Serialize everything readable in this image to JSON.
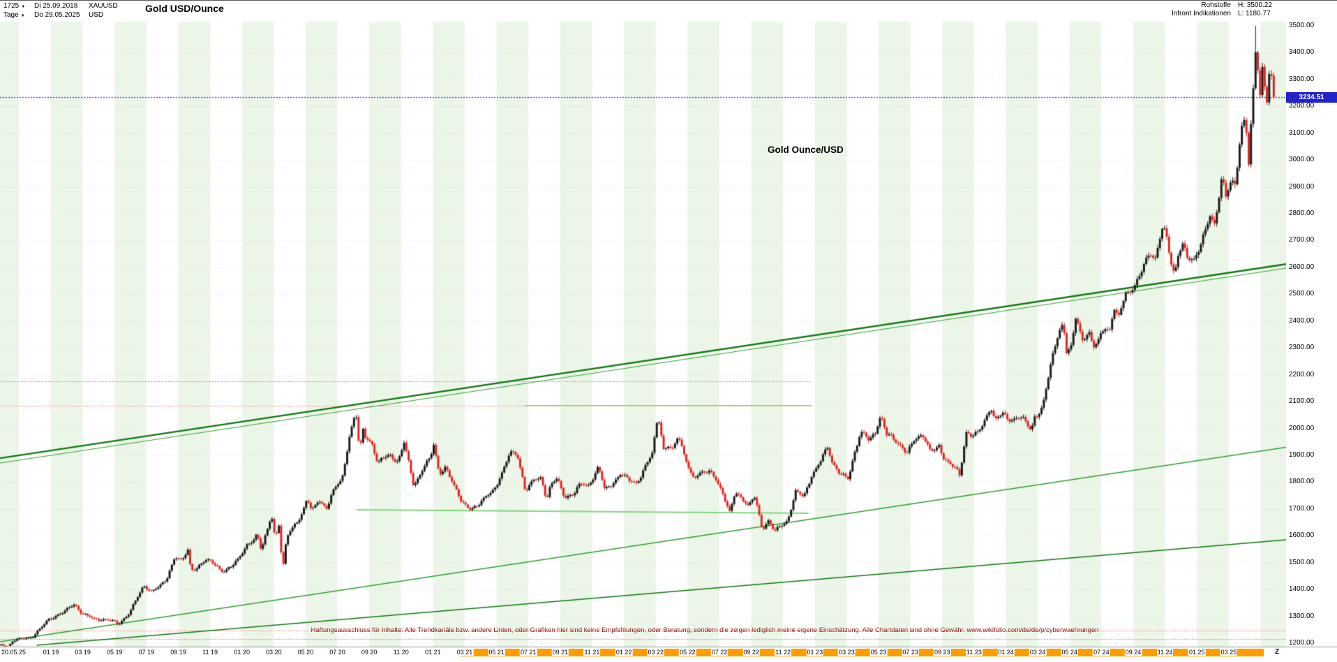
{
  "header": {
    "bars_label": "1725",
    "start_date": "Di 25.09.2018",
    "symbol": "XAUUSD",
    "period_label": "Tage",
    "end_date": "Do 29.05.2025",
    "currency": "USD",
    "title": "Gold USD/Ounce",
    "category": "Rohstoffe",
    "source": "Infront Indikationen",
    "high_label": "H: 3500.22",
    "low_label": "L: 1180.77"
  },
  "annotation": "Gold Ounce/USD",
  "disclaimer": "Haftungsausschluss für Inhalte: Alle Trendkanäle bzw. andere Linien, oder Grafiken hier sind keine Empfehlungen, oder Beratung, sondern die zeigen lediglich meine eigene Einschätzung. Alle Chartdaten sind ohne Gewähr.  www.wikifolio.com/de/de/p/cyberwaehrungen",
  "last_price_label": "3234.51",
  "x_axis": {
    "start_label": "20.05.25",
    "zoom_label": "Z"
  },
  "colors": {
    "candle_up": "#1b1b1b",
    "candle_down": "#e02622",
    "trend_dark_green": "#0e7a0e",
    "trend_mid_green": "#2f9e2f",
    "trend_light_green": "#7fd87f",
    "level_red": "#ff7474",
    "last_line_blue": "#2626d8",
    "tag_bg": "#2222cc",
    "tag_text": "#ffffff",
    "x_highlight": "#ff9d00",
    "stripe": "rgba(216,238,210,0.5)",
    "grid": "rgba(205,160,160,0.35)"
  },
  "chart_data": {
    "type": "candlestick",
    "title": "Gold USD/Ounce",
    "symbol": "XAUUSD",
    "timeframe": "Tage",
    "date_range": [
      "25.09.2018",
      "29.05.2025"
    ],
    "high": 3500.22,
    "low": 1180.77,
    "last": 3234.51,
    "xlabel": "",
    "ylabel": "",
    "ylim": [
      1200,
      3500
    ],
    "y_axis": {
      "min": 1200,
      "max": 3500,
      "step": 100
    },
    "months_total": 80.1,
    "candle_count": 560,
    "x_highlight": {
      "from_m": 28.9,
      "to_m": 79.4
    },
    "x_labels": [
      {
        "t": "01 19",
        "m": 3.2,
        "hl": false
      },
      {
        "t": "03 19",
        "m": 5.2,
        "hl": false
      },
      {
        "t": "05 19",
        "m": 7.2,
        "hl": false
      },
      {
        "t": "07 19",
        "m": 9.2,
        "hl": false
      },
      {
        "t": "09 19",
        "m": 11.2,
        "hl": false
      },
      {
        "t": "11 19",
        "m": 13.2,
        "hl": false
      },
      {
        "t": "01 20",
        "m": 15.2,
        "hl": false
      },
      {
        "t": "03 20",
        "m": 17.2,
        "hl": false
      },
      {
        "t": "05 20",
        "m": 19.2,
        "hl": false
      },
      {
        "t": "07 20",
        "m": 21.2,
        "hl": false
      },
      {
        "t": "09 20",
        "m": 23.2,
        "hl": false
      },
      {
        "t": "11 20",
        "m": 25.2,
        "hl": false
      },
      {
        "t": "01 21",
        "m": 27.2,
        "hl": false
      },
      {
        "t": "03 21",
        "m": 29.2,
        "hl": true
      },
      {
        "t": "05 21",
        "m": 31.2,
        "hl": true
      },
      {
        "t": "07 21",
        "m": 33.2,
        "hl": true
      },
      {
        "t": "09 21",
        "m": 35.2,
        "hl": true
      },
      {
        "t": "11 21",
        "m": 37.2,
        "hl": true
      },
      {
        "t": "01 22",
        "m": 39.2,
        "hl": true
      },
      {
        "t": "03 22",
        "m": 41.2,
        "hl": true
      },
      {
        "t": "05 22",
        "m": 43.2,
        "hl": true
      },
      {
        "t": "07 22",
        "m": 45.2,
        "hl": true
      },
      {
        "t": "09 22",
        "m": 47.2,
        "hl": true
      },
      {
        "t": "11 22",
        "m": 49.2,
        "hl": true
      },
      {
        "t": "01 23",
        "m": 51.2,
        "hl": true
      },
      {
        "t": "03 23",
        "m": 53.2,
        "hl": true
      },
      {
        "t": "05 23",
        "m": 55.2,
        "hl": true
      },
      {
        "t": "07 23",
        "m": 57.2,
        "hl": true
      },
      {
        "t": "09 23",
        "m": 59.2,
        "hl": true
      },
      {
        "t": "11 23",
        "m": 61.2,
        "hl": true
      },
      {
        "t": "01 24",
        "m": 63.2,
        "hl": true
      },
      {
        "t": "03 24",
        "m": 65.2,
        "hl": true
      },
      {
        "t": "05 24",
        "m": 67.2,
        "hl": true
      },
      {
        "t": "07 24",
        "m": 69.2,
        "hl": true
      },
      {
        "t": "09 24",
        "m": 71.2,
        "hl": true
      },
      {
        "t": "11 24",
        "m": 73.2,
        "hl": true
      },
      {
        "t": "01 25",
        "m": 75.2,
        "hl": true
      },
      {
        "t": "03 25",
        "m": 77.2,
        "hl": true
      }
    ],
    "horizontal_lines": [
      {
        "name": "last-price-line",
        "price": 3234.51,
        "color": "#2626d8",
        "style": "dotted",
        "width": 1.2,
        "from_m": 0,
        "to_m": 82
      },
      {
        "name": "resistance-upper",
        "price": 2175,
        "color": "#ff7474",
        "style": "dotted",
        "width": 1,
        "from_m": 0,
        "to_m": 51
      },
      {
        "name": "resistance-lower",
        "price": 2085,
        "color": "#ff7474",
        "style": "dotted",
        "width": 1,
        "from_m": 0,
        "to_m": 51
      },
      {
        "name": "support-upper",
        "price": 1247,
        "color": "#ff7474",
        "style": "dotted",
        "width": 1,
        "from_m": 0,
        "to_m": 82
      },
      {
        "name": "support-lower",
        "price": 1216,
        "color": "#ff7474",
        "style": "dotted",
        "width": 1,
        "from_m": 0,
        "to_m": 82
      }
    ],
    "trend_lines": [
      {
        "name": "upper-channel-main",
        "from": [
          0,
          1889
        ],
        "to": [
          81.5,
          2612
        ],
        "color": "#0e7a0e",
        "width": 2.4
      },
      {
        "name": "upper-channel-inner",
        "from": [
          0,
          1871
        ],
        "to": [
          81.5,
          2597
        ],
        "color": "#2f9e2f",
        "width": 1
      },
      {
        "name": "mid-trend",
        "from": [
          0,
          1205
        ],
        "to": [
          81.5,
          1930
        ],
        "color": "#2f9e2f",
        "width": 1.4
      },
      {
        "name": "lower-trend",
        "from": [
          2.3,
          1192
        ],
        "to": [
          81.5,
          1585
        ],
        "color": "#0e7a0e",
        "width": 1.5
      },
      {
        "name": "flat-support",
        "from": [
          22.4,
          1697
        ],
        "to": [
          50.8,
          1684
        ],
        "color": "#7fd87f",
        "width": 2
      },
      {
        "name": "flat-resistance",
        "from": [
          33,
          2085
        ],
        "to": [
          51,
          2085
        ],
        "color": "#7fd87f",
        "width": 1.5
      }
    ],
    "close_path": [
      [
        0,
        1192
      ],
      [
        0.5,
        1185
      ],
      [
        1,
        1215
      ],
      [
        2,
        1222
      ],
      [
        3,
        1282
      ],
      [
        4,
        1321
      ],
      [
        4.7,
        1344
      ],
      [
        5,
        1313
      ],
      [
        6,
        1292
      ],
      [
        7,
        1283
      ],
      [
        7.4,
        1268
      ],
      [
        8,
        1305
      ],
      [
        9,
        1409
      ],
      [
        9.5,
        1390
      ],
      [
        10,
        1414
      ],
      [
        10.5,
        1446
      ],
      [
        11,
        1520
      ],
      [
        11.4,
        1500
      ],
      [
        11.8,
        1549
      ],
      [
        12,
        1472
      ],
      [
        12.5,
        1490
      ],
      [
        13,
        1512
      ],
      [
        13.5,
        1490
      ],
      [
        14,
        1464
      ],
      [
        15,
        1517
      ],
      [
        15.5,
        1555
      ],
      [
        16,
        1589
      ],
      [
        16.15,
        1611
      ],
      [
        16.4,
        1556
      ],
      [
        16.9,
        1643
      ],
      [
        17.05,
        1680
      ],
      [
        17.3,
        1585
      ],
      [
        17.55,
        1642
      ],
      [
        17.75,
        1460
      ],
      [
        18,
        1590
      ],
      [
        18.2,
        1617
      ],
      [
        19,
        1686
      ],
      [
        19.3,
        1740
      ],
      [
        19.6,
        1684
      ],
      [
        20,
        1730
      ],
      [
        20.5,
        1706
      ],
      [
        21,
        1781
      ],
      [
        21.5,
        1808
      ],
      [
        22,
        1976
      ],
      [
        22.35,
        2067
      ],
      [
        22.6,
        1911
      ],
      [
        22.8,
        2010
      ],
      [
        23,
        1968
      ],
      [
        23.4,
        1940
      ],
      [
        23.75,
        1857
      ],
      [
        24,
        1886
      ],
      [
        24.5,
        1902
      ],
      [
        25,
        1879
      ],
      [
        25.4,
        1951
      ],
      [
        25.7,
        1867
      ],
      [
        26,
        1777
      ],
      [
        26.5,
        1840
      ],
      [
        27,
        1898
      ],
      [
        27.25,
        1943
      ],
      [
        27.6,
        1830
      ],
      [
        28,
        1847
      ],
      [
        28.5,
        1790
      ],
      [
        29,
        1734
      ],
      [
        29.5,
        1700
      ],
      [
        30,
        1708
      ],
      [
        30.5,
        1744
      ],
      [
        31,
        1769
      ],
      [
        31.5,
        1830
      ],
      [
        32,
        1907
      ],
      [
        32.5,
        1898
      ],
      [
        33,
        1770
      ],
      [
        33.5,
        1812
      ],
      [
        34,
        1814
      ],
      [
        34.35,
        1729
      ],
      [
        34.6,
        1790
      ],
      [
        35,
        1814
      ],
      [
        35.5,
        1744
      ],
      [
        36,
        1757
      ],
      [
        36.5,
        1792
      ],
      [
        37,
        1783
      ],
      [
        37.6,
        1862
      ],
      [
        38,
        1775
      ],
      [
        38.5,
        1790
      ],
      [
        39,
        1829
      ],
      [
        39.5,
        1812
      ],
      [
        40,
        1797
      ],
      [
        40.5,
        1850
      ],
      [
        41,
        1909
      ],
      [
        41.35,
        2051
      ],
      [
        41.7,
        1920
      ],
      [
        42,
        1937
      ],
      [
        42.3,
        1924
      ],
      [
        42.6,
        1977
      ],
      [
        43,
        1897
      ],
      [
        43.5,
        1812
      ],
      [
        44,
        1837
      ],
      [
        44.5,
        1847
      ],
      [
        45,
        1807
      ],
      [
        45.5,
        1740
      ],
      [
        45.85,
        1690
      ],
      [
        46.2,
        1766
      ],
      [
        46.6,
        1742
      ],
      [
        47,
        1711
      ],
      [
        47.4,
        1745
      ],
      [
        47.9,
        1622
      ],
      [
        48.3,
        1660
      ],
      [
        48.7,
        1623
      ],
      [
        49,
        1634
      ],
      [
        49.5,
        1650
      ],
      [
        50,
        1769
      ],
      [
        50.5,
        1750
      ],
      [
        51,
        1824
      ],
      [
        51.5,
        1870
      ],
      [
        52,
        1928
      ],
      [
        52.3,
        1870
      ],
      [
        53,
        1827
      ],
      [
        53.3,
        1811
      ],
      [
        54,
        1969
      ],
      [
        54.2,
        1989
      ],
      [
        54.6,
        1960
      ],
      [
        55,
        1990
      ],
      [
        55.35,
        2048
      ],
      [
        55.7,
        1975
      ],
      [
        56,
        1963
      ],
      [
        56.5,
        1940
      ],
      [
        57,
        1919
      ],
      [
        57.5,
        1960
      ],
      [
        58,
        1965
      ],
      [
        58.5,
        1915
      ],
      [
        59,
        1940
      ],
      [
        59.3,
        1890
      ],
      [
        60,
        1849
      ],
      [
        60.3,
        1820
      ],
      [
        60.7,
        1984
      ],
      [
        61,
        1983
      ],
      [
        61.5,
        1990
      ],
      [
        62,
        2036
      ],
      [
        62.25,
        2072
      ],
      [
        62.5,
        2030
      ],
      [
        63,
        2063
      ],
      [
        63.5,
        2030
      ],
      [
        64,
        2040
      ],
      [
        64.4,
        2024
      ],
      [
        64.8,
        1991
      ],
      [
        65,
        2044
      ],
      [
        65.5,
        2083
      ],
      [
        66,
        2230
      ],
      [
        66.5,
        2350
      ],
      [
        66.8,
        2392
      ],
      [
        67,
        2286
      ],
      [
        67.3,
        2310
      ],
      [
        67.6,
        2425
      ],
      [
        68,
        2327
      ],
      [
        68.4,
        2350
      ],
      [
        68.7,
        2300
      ],
      [
        69,
        2327
      ],
      [
        69.4,
        2390
      ],
      [
        69.7,
        2360
      ],
      [
        70,
        2448
      ],
      [
        70.3,
        2410
      ],
      [
        70.7,
        2500
      ],
      [
        71,
        2503
      ],
      [
        71.5,
        2560
      ],
      [
        72,
        2635
      ],
      [
        72.3,
        2650
      ],
      [
        72.6,
        2620
      ],
      [
        73,
        2744
      ],
      [
        73.2,
        2740
      ],
      [
        73.5,
        2650
      ],
      [
        73.8,
        2575
      ],
      [
        74,
        2643
      ],
      [
        74.3,
        2690
      ],
      [
        74.6,
        2630
      ],
      [
        75,
        2624
      ],
      [
        75.3,
        2660
      ],
      [
        76,
        2798
      ],
      [
        76.3,
        2760
      ],
      [
        76.8,
        2935
      ],
      [
        77,
        2858
      ],
      [
        77.3,
        2910
      ],
      [
        77.6,
        2916
      ],
      [
        78,
        3123
      ],
      [
        78.25,
        3167
      ],
      [
        78.45,
        2982
      ],
      [
        78.7,
        3220
      ],
      [
        78.95,
        3470
      ],
      [
        79.05,
        3289
      ],
      [
        79.2,
        3222
      ],
      [
        79.35,
        3381
      ],
      [
        79.55,
        3185
      ],
      [
        79.8,
        3350
      ],
      [
        79.95,
        3289
      ],
      [
        80.1,
        3234.51
      ]
    ]
  }
}
